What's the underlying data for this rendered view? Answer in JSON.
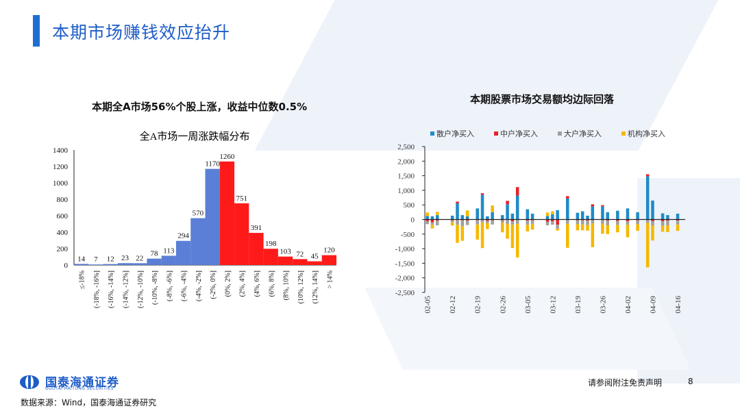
{
  "header": {
    "title": "本期市场赚钱效应抬升"
  },
  "left_panel": {
    "heading": "本期全A市场56%个股上涨，收益中位数0.5%"
  },
  "right_panel": {
    "heading": "本期股票市场交易额均边际回落"
  },
  "footer": {
    "logo_cn": "国泰海通证券",
    "logo_en": "GUOTAI HAITONG SECURITIES",
    "source": "数据来源：Wind，国泰海通证券研究",
    "disclaimer": "请参阅附注免责声明",
    "page": "8"
  },
  "colors": {
    "brand": "#1e6fd4",
    "up": "#ff1a1a",
    "down": "#5b7fd6"
  },
  "chart_data": [
    {
      "type": "bar",
      "title": "全A市场一周涨跌幅分布",
      "categories": [
        "≤-18%",
        "(-18%, -16%]",
        "(-16%, -14%]",
        "(-14%, -12%]",
        "(-12%, -10%]",
        "(-10%, -8%]",
        "(-8%, -6%]",
        "(-6%, -4%]",
        "(-4%, -2%]",
        "(-2%, 0%]",
        "(0%, 2%]",
        "(2%, 4%]",
        "(4%, 6%]",
        "(6%, 8%]",
        "(8%, 10%]",
        "(10%, 12%]",
        "(12%, 14%]",
        "> 14%"
      ],
      "values": [
        14,
        7,
        12,
        23,
        22,
        78,
        113,
        294,
        570,
        1170,
        1260,
        751,
        391,
        198,
        103,
        72,
        45,
        120
      ],
      "bar_colors": [
        "#5b7fd6",
        "#5b7fd6",
        "#5b7fd6",
        "#5b7fd6",
        "#5b7fd6",
        "#5b7fd6",
        "#5b7fd6",
        "#5b7fd6",
        "#5b7fd6",
        "#5b7fd6",
        "#ff1a1a",
        "#ff1a1a",
        "#ff1a1a",
        "#ff1a1a",
        "#ff1a1a",
        "#ff1a1a",
        "#ff1a1a",
        "#ff1a1a"
      ],
      "ylim": [
        0,
        1400
      ],
      "yticks": [
        0,
        200,
        400,
        600,
        800,
        1000,
        1200,
        1400
      ],
      "grid": false,
      "data_labels": true
    },
    {
      "type": "bar",
      "stacked": true,
      "legend_position": "top",
      "ylim": [
        -2500,
        2500
      ],
      "yticks": [
        -2500,
        -2000,
        -1500,
        -1000,
        -500,
        0,
        500,
        1000,
        1500,
        2000,
        2500
      ],
      "ytick_labels": [
        "-2,500",
        "-2,000",
        "-1,500",
        "-1,000",
        "-500",
        "0",
        "500",
        "1,000",
        "1,500",
        "2,000",
        "2,500"
      ],
      "x_tick_labels": [
        "02-05",
        "02-12",
        "02-19",
        "02-26",
        "03-05",
        "03-12",
        "03-19",
        "03-26",
        "04-02",
        "04-09",
        "04-16"
      ],
      "x_tick_index": [
        0,
        5,
        10,
        15,
        20,
        25,
        30,
        35,
        40,
        45,
        50
      ],
      "grid": false,
      "series": [
        {
          "name": "散户净买入",
          "color": "#1f8bc8",
          "values": [
            120,
            110,
            150,
            0,
            0,
            130,
            550,
            150,
            110,
            0,
            380,
            850,
            110,
            250,
            0,
            150,
            520,
            200,
            820,
            0,
            350,
            200,
            0,
            0,
            120,
            180,
            320,
            0,
            720,
            0,
            230,
            280,
            130,
            450,
            0,
            450,
            250,
            0,
            300,
            0,
            380,
            0,
            250,
            0,
            1480,
            650,
            0,
            210,
            150,
            0,
            200,
            0
          ]
        },
        {
          "name": "中户净买入",
          "color": "#e8222a",
          "values": [
            -60,
            -100,
            -40,
            0,
            0,
            -30,
            60,
            -30,
            -40,
            0,
            -20,
            50,
            -50,
            -30,
            0,
            -30,
            120,
            -60,
            290,
            0,
            -40,
            -30,
            0,
            0,
            -80,
            -60,
            -180,
            0,
            80,
            0,
            -30,
            -30,
            -40,
            70,
            0,
            40,
            -40,
            0,
            -50,
            0,
            -60,
            0,
            -30,
            0,
            70,
            -60,
            0,
            -60,
            -40,
            0,
            -40,
            0
          ]
        },
        {
          "name": "大户净买入",
          "color": "#a0a0a0",
          "values": [
            -100,
            -80,
            -160,
            0,
            0,
            -60,
            -180,
            -200,
            -150,
            0,
            -150,
            -100,
            -80,
            -140,
            0,
            -80,
            -160,
            -120,
            -150,
            0,
            -140,
            -120,
            0,
            0,
            -120,
            -120,
            -140,
            0,
            -150,
            0,
            -130,
            -140,
            -150,
            -130,
            0,
            -140,
            -160,
            0,
            -140,
            0,
            -120,
            0,
            -130,
            0,
            -120,
            -140,
            0,
            -150,
            -160,
            0,
            -130,
            0
          ]
        },
        {
          "name": "机构净买入",
          "color": "#f5b800",
          "values": [
            120,
            -130,
            110,
            0,
            0,
            -120,
            -620,
            -500,
            200,
            0,
            -520,
            -880,
            -200,
            230,
            0,
            -330,
            -500,
            -800,
            -1150,
            0,
            -230,
            -200,
            0,
            0,
            120,
            100,
            -60,
            0,
            -820,
            0,
            -210,
            -200,
            -190,
            -820,
            0,
            -350,
            -300,
            0,
            -250,
            0,
            -430,
            0,
            -230,
            0,
            -1520,
            -520,
            0,
            -210,
            -230,
            0,
            -220,
            0
          ]
        }
      ]
    }
  ]
}
